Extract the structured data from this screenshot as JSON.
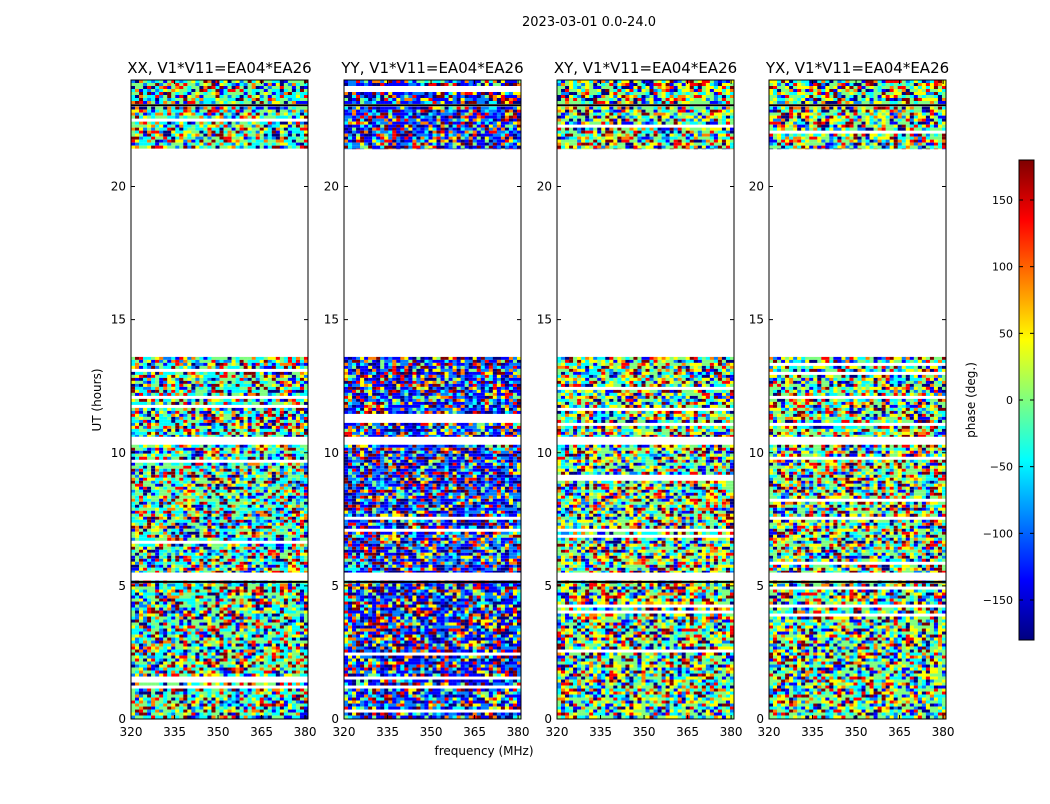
{
  "chart_data": {
    "type": "heatmap",
    "title": "2023-03-01 0.0-24.0",
    "xlabel": "frequency (MHz)",
    "ylabel": "UT (hours)",
    "xlim": [
      320,
      381
    ],
    "ylim": [
      0,
      24
    ],
    "x_ticks": [
      320,
      335,
      350,
      365,
      380
    ],
    "y_ticks": [
      0,
      5,
      10,
      15,
      20
    ],
    "panels": [
      {
        "title": "XX, V1*V11=EA04*EA26",
        "polarization": "XX"
      },
      {
        "title": "YY, V1*V11=EA04*EA26",
        "polarization": "YY"
      },
      {
        "title": "XY, V1*V11=EA04*EA26",
        "polarization": "XY"
      },
      {
        "title": "YX, V1*V11=EA04*EA26",
        "polarization": "YX"
      }
    ],
    "data_coverage_ut_hours": [
      [
        0.0,
        5.2
      ],
      [
        5.5,
        10.3
      ],
      [
        10.6,
        13.6
      ],
      [
        21.4,
        23.0
      ],
      [
        23.1,
        24.0
      ]
    ],
    "colorbar": {
      "label": "phase (deg.)",
      "range": [
        -180,
        180
      ],
      "ticks": [
        -150,
        -100,
        -50,
        0,
        50,
        100,
        150
      ],
      "tick_labels": [
        "−150",
        "−100",
        "−50",
        "0",
        "50",
        "100",
        "150"
      ],
      "colormap": "jet",
      "colors": [
        "#00007f",
        "#0000ff",
        "#007fff",
        "#00ffff",
        "#7fff7f",
        "#ffff00",
        "#ff7f00",
        "#ff0000",
        "#7f0000"
      ]
    }
  }
}
